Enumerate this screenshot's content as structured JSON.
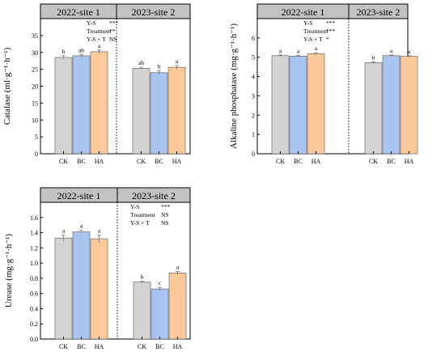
{
  "colors": {
    "CK": "#d3d3d3",
    "BC": "#a9c4f0",
    "HA": "#fcc99b",
    "header": "#c2c2c2",
    "error_bar": "#7a7a7a"
  },
  "chart_data": [
    {
      "type": "bar",
      "ylabel": "Catalase (ml·g⁻¹·h⁻¹)",
      "ylim": [
        0,
        40
      ],
      "yticks": [
        "0",
        "5",
        "10",
        "15",
        "20",
        "25",
        "30",
        "35"
      ],
      "ytick_values": [
        0,
        5,
        10,
        15,
        20,
        25,
        30,
        35
      ],
      "categories": [
        "CK",
        "BC",
        "HA"
      ],
      "panels": [
        {
          "title": "2022-site 1",
          "values": [
            28.5,
            29.0,
            30.2
          ],
          "errors": [
            0.5,
            0.4,
            0.5
          ],
          "letters": [
            "b",
            "ab",
            "a"
          ]
        },
        {
          "title": "2023-site 2",
          "values": [
            25.3,
            24.0,
            25.6
          ],
          "errors": [
            0.3,
            0.6,
            0.5
          ],
          "letters": [
            "ab",
            "b",
            "a"
          ]
        }
      ],
      "stats_panel": 0,
      "stats": [
        {
          "label": "Y-S",
          "value": "***"
        },
        {
          "label": "Treatment",
          "value": "**"
        },
        {
          "label": "Y-S × T",
          "value": "NS"
        }
      ]
    },
    {
      "type": "bar",
      "ylabel": "Alkaline phosphatase (mg·g⁻¹·h⁻¹)",
      "ylim": [
        0,
        7
      ],
      "yticks": [
        "0",
        "1",
        "2",
        "3",
        "4",
        "5",
        "6"
      ],
      "ytick_values": [
        0,
        1,
        2,
        3,
        4,
        5,
        6
      ],
      "categories": [
        "CK",
        "BC",
        "HA"
      ],
      "panels": [
        {
          "title": "2022-site 1",
          "values": [
            5.08,
            5.06,
            5.18
          ],
          "errors": [
            0.04,
            0.04,
            0.05
          ],
          "letters": [
            "a",
            "a",
            "a"
          ]
        },
        {
          "title": "2023-site 2",
          "values": [
            4.72,
            5.08,
            5.05
          ],
          "errors": [
            0.04,
            0.04,
            0.03
          ],
          "letters": [
            "b",
            "a",
            "a"
          ]
        }
      ],
      "stats_panel": 0,
      "stats": [
        {
          "label": "Y-S",
          "value": "***"
        },
        {
          "label": "Treatment",
          "value": "***"
        },
        {
          "label": "Y-S × T",
          "value": "*"
        }
      ]
    },
    {
      "type": "bar",
      "ylabel": "Urease (mg·g⁻¹·h⁻¹)",
      "ylim": [
        0,
        1.8
      ],
      "yticks": [
        "0.0",
        "0.2",
        "0.4",
        "0.6",
        "0.8",
        "1.0",
        "1.2",
        "1.4",
        "1.6"
      ],
      "ytick_values": [
        0,
        0.2,
        0.4,
        0.6,
        0.8,
        1.0,
        1.2,
        1.4,
        1.6
      ],
      "categories": [
        "CK",
        "BC",
        "HA"
      ],
      "panels": [
        {
          "title": "2022-site 1",
          "values": [
            1.33,
            1.41,
            1.32
          ],
          "errors": [
            0.04,
            0.02,
            0.05
          ],
          "letters": [
            "a",
            "a",
            "a"
          ]
        },
        {
          "title": "2023-site 2",
          "values": [
            0.75,
            0.66,
            0.87
          ],
          "errors": [
            0.01,
            0.02,
            0.02
          ],
          "letters": [
            "b",
            "c",
            "a"
          ]
        }
      ],
      "stats_panel": 1,
      "stats": [
        {
          "label": "Y-S",
          "value": "***"
        },
        {
          "label": "Treatment",
          "value": "NS"
        },
        {
          "label": "Y-S × T",
          "value": "NS"
        }
      ]
    }
  ]
}
